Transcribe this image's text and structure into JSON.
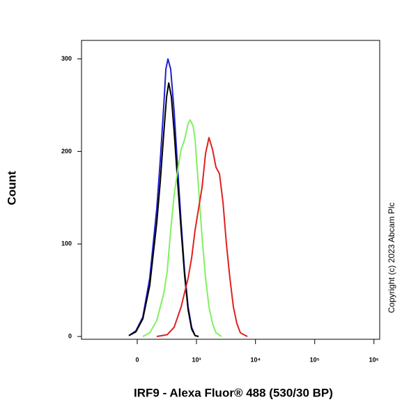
{
  "chart_data": {
    "type": "line",
    "x_label": "IRF9 - Alexa Fluor® 488 (530/30 BP)",
    "y_label": "Count",
    "annotation": "Copyright (c) 2023 Abcam Plc",
    "xscale": "biexponential",
    "xlim": [
      -870,
      1250000
    ],
    "xticks": [
      0,
      {
        "value": 1000,
        "label": "10³"
      },
      {
        "value": 10000,
        "label": "10⁴"
      },
      {
        "value": 100000,
        "label": "10⁵"
      },
      {
        "value": 1000000,
        "label": "10⁶"
      }
    ],
    "ylim": [
      -3,
      320
    ],
    "yticks": [
      0,
      100,
      200,
      300
    ],
    "series": [
      {
        "color": "#1f1fd0",
        "x": [
          -67,
          -11,
          44,
          102,
          168,
          206,
          248,
          274,
          303,
          343,
          400,
          463,
          538,
          621,
          716,
          824,
          946,
          1085
        ],
        "values": [
          1,
          6,
          21,
          63,
          138,
          191,
          251,
          289,
          300,
          289,
          243,
          183,
          123,
          70,
          32,
          10,
          1,
          0
        ]
      },
      {
        "color": "#000000",
        "x": [
          -67,
          -11,
          44,
          102,
          168,
          206,
          248,
          283,
          314,
          354,
          400,
          463,
          538,
          621,
          716,
          824,
          946,
          1085
        ],
        "values": [
          1,
          5,
          19,
          55,
          123,
          168,
          221,
          259,
          274,
          259,
          221,
          168,
          115,
          66,
          29,
          8,
          1,
          0
        ]
      },
      {
        "color": "#80f060",
        "x": [
          44,
          102,
          168,
          248,
          292,
          343,
          400,
          463,
          538,
          621,
          716,
          778,
          871,
          946,
          1085,
          1246,
          1430,
          1638,
          1879,
          2151,
          2671
        ],
        "values": [
          0,
          4,
          17,
          47,
          70,
          115,
          153,
          179,
          202,
          213,
          230,
          234,
          228,
          213,
          161,
          108,
          63,
          32,
          14,
          4,
          0
        ]
      },
      {
        "color": "#e02020",
        "x": [
          168,
          292,
          400,
          538,
          716,
          824,
          946,
          1085,
          1246,
          1430,
          1638,
          1879,
          2151,
          2464,
          2824,
          3232,
          3703,
          4240,
          4856,
          5555,
          7300
        ],
        "values": [
          0,
          2,
          10,
          32,
          63,
          85,
          115,
          138,
          161,
          198,
          215,
          202,
          183,
          176,
          145,
          100,
          63,
          32,
          14,
          4,
          0
        ]
      }
    ]
  }
}
